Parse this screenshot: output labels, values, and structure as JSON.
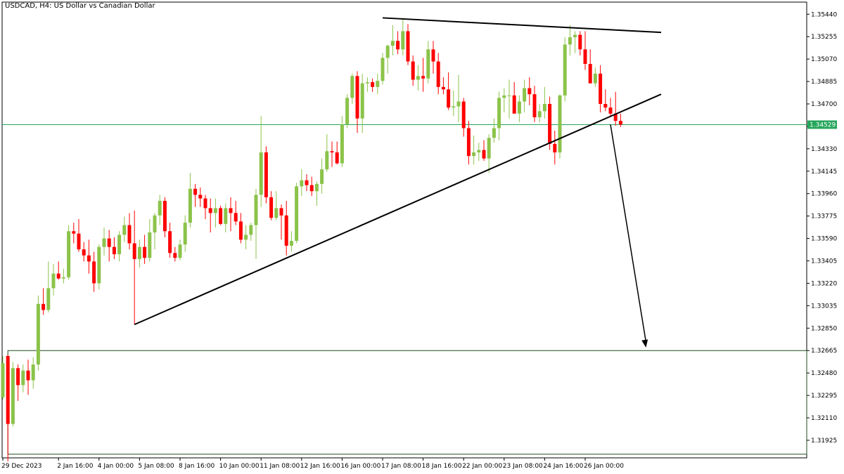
{
  "window": {
    "title": "USDCAD, H4:  US Dollar vs Canadian Dollar"
  },
  "chart_data": {
    "type": "candlestick",
    "symbol": "USDCAD",
    "timeframe": "H4",
    "description": "US Dollar vs Canadian Dollar",
    "ylim": [
      1.3178,
      1.3554
    ],
    "grid": false,
    "y_ticks": [
      "1.35440",
      "1.35255",
      "1.35070",
      "1.34885",
      "1.34700",
      "1.34515",
      "1.34330",
      "1.34145",
      "1.33960",
      "1.33775",
      "1.33590",
      "1.33405",
      "1.33220",
      "1.33035",
      "1.32850",
      "1.32665",
      "1.32480",
      "1.32295",
      "1.32110",
      "1.31925"
    ],
    "x_ticks": [
      {
        "bar": 0,
        "label": "29 Dec 2023"
      },
      {
        "bar": 11,
        "label": "2 Jan 16:00"
      },
      {
        "bar": 19,
        "label": "4 Jan 00:00"
      },
      {
        "bar": 27,
        "label": "5 Jan 08:00"
      },
      {
        "bar": 35,
        "label": "8 Jan 16:00"
      },
      {
        "bar": 43,
        "label": "10 Jan 00:00"
      },
      {
        "bar": 51,
        "label": "11 Jan 08:00"
      },
      {
        "bar": 59,
        "label": "12 Jan 16:00"
      },
      {
        "bar": 67,
        "label": "16 Jan 00:00"
      },
      {
        "bar": 75,
        "label": "17 Jan 08:00"
      },
      {
        "bar": 83,
        "label": "18 Jan 16:00"
      },
      {
        "bar": 91,
        "label": "22 Jan 00:00"
      },
      {
        "bar": 99,
        "label": "23 Jan 08:00"
      },
      {
        "bar": 107,
        "label": "24 Jan 16:00"
      },
      {
        "bar": 115,
        "label": "26 Jan 00:00"
      }
    ],
    "current_price": {
      "value": 1.34529,
      "label": "1.34529",
      "color": "#26a65b"
    },
    "colors": {
      "bull": "#8bc34a",
      "bear": "#ff0000",
      "line": "#000000",
      "price_line": "#26a65b"
    },
    "ohlc": [
      [
        1.3228,
        1.3262,
        1.3226,
        1.3256
      ],
      [
        1.3262,
        1.3263,
        1.3175,
        1.3206
      ],
      [
        1.3206,
        1.3257,
        1.3204,
        1.3252
      ],
      [
        1.3252,
        1.3255,
        1.3225,
        1.3238
      ],
      [
        1.3238,
        1.3255,
        1.3232,
        1.325
      ],
      [
        1.325,
        1.3259,
        1.323,
        1.3242
      ],
      [
        1.3242,
        1.3261,
        1.3235,
        1.3255
      ],
      [
        1.3255,
        1.3312,
        1.325,
        1.3305
      ],
      [
        1.3305,
        1.3318,
        1.3296,
        1.33
      ],
      [
        1.33,
        1.334,
        1.3298,
        1.3318
      ],
      [
        1.3318,
        1.3338,
        1.3312,
        1.333
      ],
      [
        1.333,
        1.334,
        1.3325,
        1.3326
      ],
      [
        1.3326,
        1.3334,
        1.3322,
        1.3327
      ],
      [
        1.3327,
        1.337,
        1.3325,
        1.3365
      ],
      [
        1.3365,
        1.3372,
        1.3355,
        1.3363
      ],
      [
        1.3363,
        1.3375,
        1.3348,
        1.335
      ],
      [
        1.335,
        1.3356,
        1.334,
        1.3345
      ],
      [
        1.3345,
        1.3358,
        1.333,
        1.334
      ],
      [
        1.334,
        1.3348,
        1.3315,
        1.3322
      ],
      [
        1.3322,
        1.3354,
        1.3317,
        1.3352
      ],
      [
        1.3352,
        1.3368,
        1.3345,
        1.3359
      ],
      [
        1.3359,
        1.3366,
        1.334,
        1.3352
      ],
      [
        1.3352,
        1.336,
        1.3342,
        1.3346
      ],
      [
        1.3346,
        1.3365,
        1.334,
        1.3362
      ],
      [
        1.3362,
        1.3377,
        1.3356,
        1.337
      ],
      [
        1.337,
        1.338,
        1.335,
        1.3355
      ],
      [
        1.3355,
        1.3382,
        1.3288,
        1.3342
      ],
      [
        1.3342,
        1.3358,
        1.3335,
        1.3352
      ],
      [
        1.3352,
        1.3362,
        1.3338,
        1.3343
      ],
      [
        1.3343,
        1.3375,
        1.334,
        1.3364
      ],
      [
        1.3364,
        1.338,
        1.335,
        1.3378
      ],
      [
        1.3378,
        1.3395,
        1.337,
        1.339
      ],
      [
        1.339,
        1.3393,
        1.336,
        1.3365
      ],
      [
        1.3365,
        1.3372,
        1.3343,
        1.3347
      ],
      [
        1.3347,
        1.3352,
        1.334,
        1.3343
      ],
      [
        1.3343,
        1.3358,
        1.3341,
        1.3354
      ],
      [
        1.3354,
        1.3378,
        1.3348,
        1.3372
      ],
      [
        1.3372,
        1.3413,
        1.3368,
        1.34
      ],
      [
        1.34,
        1.3404,
        1.3385,
        1.3395
      ],
      [
        1.3395,
        1.3401,
        1.3385,
        1.3392
      ],
      [
        1.3392,
        1.3395,
        1.3375,
        1.3384
      ],
      [
        1.3384,
        1.3392,
        1.3364,
        1.338
      ],
      [
        1.338,
        1.3392,
        1.3368,
        1.3384
      ],
      [
        1.3384,
        1.3386,
        1.337,
        1.3371
      ],
      [
        1.3371,
        1.3388,
        1.3364,
        1.3384
      ],
      [
        1.3384,
        1.3393,
        1.3365,
        1.338
      ],
      [
        1.338,
        1.339,
        1.337,
        1.3373
      ],
      [
        1.3373,
        1.338,
        1.3355,
        1.3358
      ],
      [
        1.3358,
        1.337,
        1.335,
        1.3362
      ],
      [
        1.3362,
        1.3372,
        1.3357,
        1.337
      ],
      [
        1.337,
        1.34,
        1.3342,
        1.3395
      ],
      [
        1.3395,
        1.346,
        1.3385,
        1.343
      ],
      [
        1.343,
        1.3435,
        1.3388,
        1.3393
      ],
      [
        1.3393,
        1.3398,
        1.3374,
        1.3376
      ],
      [
        1.3376,
        1.3398,
        1.3374,
        1.3384
      ],
      [
        1.3384,
        1.3387,
        1.3358,
        1.3378
      ],
      [
        1.3378,
        1.339,
        1.3345,
        1.3353
      ],
      [
        1.3353,
        1.3365,
        1.3348,
        1.3357
      ],
      [
        1.3357,
        1.3405,
        1.3355,
        1.3402
      ],
      [
        1.3402,
        1.3416,
        1.3394,
        1.3407
      ],
      [
        1.3407,
        1.3412,
        1.3398,
        1.3403
      ],
      [
        1.3403,
        1.341,
        1.3394,
        1.3398
      ],
      [
        1.3398,
        1.3406,
        1.3386,
        1.3404
      ],
      [
        1.3404,
        1.3425,
        1.3396,
        1.3416
      ],
      [
        1.3416,
        1.3445,
        1.3414,
        1.3431
      ],
      [
        1.3431,
        1.3439,
        1.3418,
        1.343
      ],
      [
        1.343,
        1.3439,
        1.342,
        1.3421
      ],
      [
        1.3421,
        1.346,
        1.3418,
        1.3453
      ],
      [
        1.3453,
        1.3478,
        1.345,
        1.3475
      ],
      [
        1.3475,
        1.3495,
        1.347,
        1.3493
      ],
      [
        1.3493,
        1.3497,
        1.3446,
        1.3458
      ],
      [
        1.3458,
        1.3495,
        1.3446,
        1.3487
      ],
      [
        1.3487,
        1.3492,
        1.348,
        1.3488
      ],
      [
        1.3488,
        1.3491,
        1.348,
        1.3484
      ],
      [
        1.3484,
        1.3495,
        1.3478,
        1.3489
      ],
      [
        1.3489,
        1.3512,
        1.3486,
        1.3508
      ],
      [
        1.3508,
        1.3519,
        1.3495,
        1.3518
      ],
      [
        1.3518,
        1.3535,
        1.351,
        1.3522
      ],
      [
        1.3522,
        1.353,
        1.3511,
        1.3515
      ],
      [
        1.3515,
        1.3541,
        1.351,
        1.353
      ],
      [
        1.353,
        1.3536,
        1.3502,
        1.3505
      ],
      [
        1.3505,
        1.351,
        1.3485,
        1.349
      ],
      [
        1.349,
        1.3502,
        1.3481,
        1.3493
      ],
      [
        1.3493,
        1.3508,
        1.348,
        1.3491
      ],
      [
        1.3491,
        1.3522,
        1.3487,
        1.3515
      ],
      [
        1.3515,
        1.3522,
        1.3495,
        1.3505
      ],
      [
        1.3505,
        1.3512,
        1.3478,
        1.3484
      ],
      [
        1.3484,
        1.3492,
        1.3478,
        1.3482
      ],
      [
        1.3482,
        1.3496,
        1.3465,
        1.3467
      ],
      [
        1.3467,
        1.3481,
        1.346,
        1.3468
      ],
      [
        1.3468,
        1.3494,
        1.3455,
        1.3472
      ],
      [
        1.3472,
        1.3475,
        1.3443,
        1.345
      ],
      [
        1.345,
        1.3456,
        1.342,
        1.3427
      ],
      [
        1.3427,
        1.3444,
        1.342,
        1.343
      ],
      [
        1.343,
        1.3438,
        1.3423,
        1.3432
      ],
      [
        1.3432,
        1.344,
        1.3423,
        1.3425
      ],
      [
        1.3425,
        1.3445,
        1.3413,
        1.3442
      ],
      [
        1.3442,
        1.3458,
        1.3438,
        1.345
      ],
      [
        1.345,
        1.348,
        1.344,
        1.3475
      ],
      [
        1.3475,
        1.3483,
        1.3463,
        1.3477
      ],
      [
        1.3477,
        1.349,
        1.3458,
        1.3477
      ],
      [
        1.3477,
        1.3488,
        1.3462,
        1.3462
      ],
      [
        1.3462,
        1.3477,
        1.3455,
        1.3472
      ],
      [
        1.3472,
        1.349,
        1.3463,
        1.3483
      ],
      [
        1.3483,
        1.3492,
        1.3469,
        1.3478
      ],
      [
        1.3478,
        1.3485,
        1.3455,
        1.3459
      ],
      [
        1.3459,
        1.347,
        1.3455,
        1.3464
      ],
      [
        1.3464,
        1.3484,
        1.3458,
        1.347
      ],
      [
        1.347,
        1.3476,
        1.3432,
        1.3437
      ],
      [
        1.3437,
        1.3448,
        1.342,
        1.343
      ],
      [
        1.343,
        1.3478,
        1.3425,
        1.3477
      ],
      [
        1.3477,
        1.3525,
        1.3472,
        1.3519
      ],
      [
        1.3519,
        1.3535,
        1.351,
        1.3525
      ],
      [
        1.3525,
        1.353,
        1.3512,
        1.3527
      ],
      [
        1.3527,
        1.353,
        1.351,
        1.3515
      ],
      [
        1.3515,
        1.353,
        1.3498,
        1.3503
      ],
      [
        1.3503,
        1.3515,
        1.3487,
        1.3487
      ],
      [
        1.3487,
        1.35,
        1.3484,
        1.3495
      ],
      [
        1.3495,
        1.3502,
        1.3463,
        1.347
      ],
      [
        1.347,
        1.3482,
        1.3464,
        1.3467
      ],
      [
        1.3467,
        1.3475,
        1.346,
        1.3462
      ],
      [
        1.3462,
        1.348,
        1.3452,
        1.3456
      ],
      [
        1.3456,
        1.3462,
        1.3451,
        1.3453
      ]
    ],
    "annotations": {
      "triangle_top": {
        "from": {
          "bar": 75,
          "price": 1.3541
        },
        "to": {
          "bar": 130,
          "price": 1.3529
        }
      },
      "triangle_bottom": {
        "from": {
          "bar": 26,
          "price": 1.3288
        },
        "to": {
          "bar": 130,
          "price": 1.3478
        }
      },
      "projection_arrow": {
        "from": {
          "bar": 120,
          "price": 1.3453
        },
        "to": {
          "bar": 127,
          "price": 1.3269
        }
      },
      "target_zone": {
        "from_bar": 1,
        "top": 1.32665,
        "bottom": 1.3181
      }
    }
  }
}
